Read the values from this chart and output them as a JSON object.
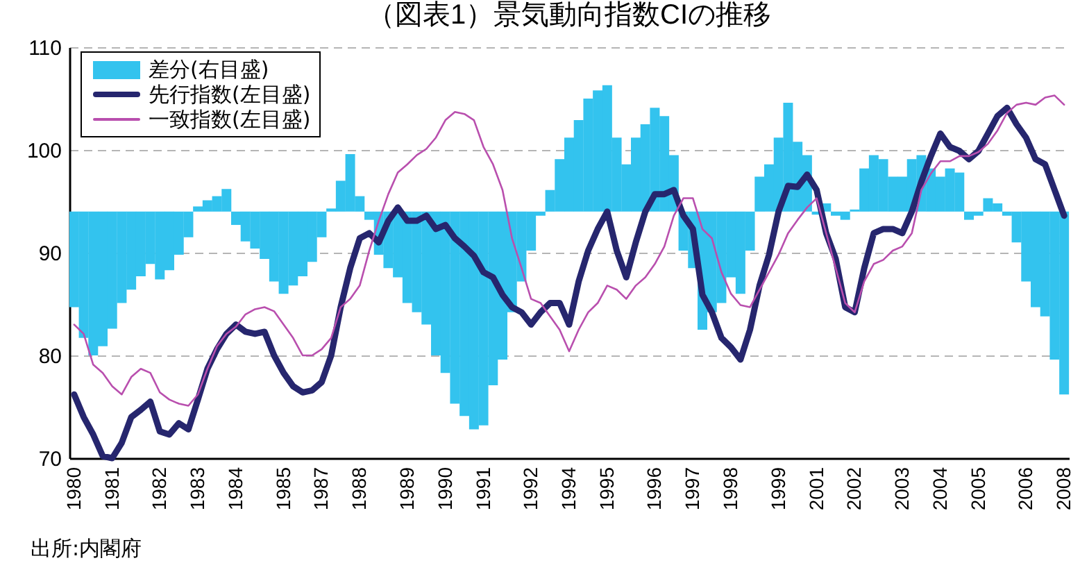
{
  "chart_data": {
    "type": "line",
    "title": "（図表1）景気動向指数CIの推移",
    "categories": [
      "1980",
      null,
      null,
      null,
      "1981",
      null,
      null,
      null,
      null,
      "1982",
      null,
      null,
      null,
      "1983",
      null,
      null,
      null,
      "1984",
      null,
      null,
      null,
      null,
      "1985",
      null,
      null,
      null,
      "1987",
      null,
      null,
      null,
      "1988",
      null,
      null,
      null,
      null,
      "1989",
      null,
      null,
      null,
      "1990",
      null,
      null,
      null,
      "1991",
      null,
      null,
      null,
      null,
      "1992",
      null,
      null,
      null,
      "1994",
      null,
      null,
      null,
      "1995",
      null,
      null,
      null,
      null,
      "1996",
      null,
      null,
      null,
      "1997",
      null,
      null,
      null,
      "1998",
      null,
      null,
      null,
      null,
      "1999",
      null,
      null,
      null,
      "2001",
      null,
      null,
      null,
      "2002",
      null,
      null,
      null,
      null,
      "2003",
      null,
      null,
      null,
      "2004",
      null,
      null,
      null,
      "2005",
      null,
      null,
      null,
      null,
      "2006",
      null,
      null,
      null,
      "2008"
    ],
    "series": [
      {
        "name": "差分(右目盛)",
        "type": "bar",
        "color": "#33c3ee",
        "base": [
          94,
          94,
          94,
          94,
          94,
          94,
          94,
          94,
          94,
          94,
          94,
          94,
          94,
          94,
          94,
          94,
          94,
          94,
          94,
          94,
          94,
          94,
          94,
          94,
          94,
          94,
          94,
          94,
          94,
          94,
          94,
          94,
          94,
          94,
          94,
          94,
          94,
          94,
          94,
          94,
          94,
          94,
          94,
          94,
          94,
          94,
          94,
          94,
          94,
          94,
          94,
          94,
          94,
          94,
          94,
          94,
          94,
          94,
          94,
          94,
          94,
          94,
          94,
          94,
          94,
          94,
          94,
          94,
          94,
          94,
          94,
          94,
          94,
          94,
          94,
          94,
          94,
          94,
          94,
          94,
          94,
          94,
          94,
          94,
          94,
          94,
          94,
          94,
          94,
          94,
          94,
          94,
          94,
          94,
          94,
          94,
          94,
          94,
          94,
          94,
          94,
          94,
          94,
          94,
          94
        ],
        "values": [
          -9.3,
          -12.3,
          -14,
          -13.1,
          -11.4,
          -8.9,
          -7.6,
          -6.3,
          -5.1,
          -6.6,
          -5.7,
          -4.2,
          -2.5,
          0.5,
          1.1,
          1.5,
          2.2,
          -1.3,
          -2.9,
          -3.6,
          -4.6,
          -6.8,
          -8,
          -7.2,
          -6.3,
          -4.9,
          -2.5,
          0.3,
          3,
          5.6,
          1.5,
          -0.8,
          -4.2,
          -5.5,
          -6.4,
          -8.9,
          -9.8,
          -11,
          -14,
          -15.7,
          -18.7,
          -19.9,
          -21.2,
          -20.8,
          -16.9,
          -14.4,
          -9.8,
          -6.8,
          -3.8,
          -0.4,
          2.1,
          5.1,
          7.2,
          8.9,
          11,
          11.8,
          12.3,
          7.2,
          4.6,
          7.2,
          8.5,
          10.1,
          9.3,
          5.5,
          -3.8,
          -5.5,
          -11.5,
          -9.8,
          -8.9,
          -6.4,
          -8,
          -3.8,
          3.4,
          4.6,
          7.2,
          10.6,
          6.8,
          5.5,
          -0.3,
          0.8,
          -0.4,
          -0.8,
          0.2,
          4.2,
          5.5,
          5.1,
          3.4,
          3.4,
          5.1,
          5.5,
          4.2,
          3.4,
          4.2,
          3.8,
          -0.8,
          -0.4,
          1.3,
          0.8,
          -0.4,
          -3,
          -6.8,
          -9.3,
          -10.2,
          -14.4,
          -17.8
        ]
      },
      {
        "name": "先行指数(左目盛)",
        "color": "#26266e",
        "values": [
          76.2,
          74,
          72.3,
          70.2,
          70,
          71.5,
          74,
          74.7,
          75.5,
          72.6,
          72.3,
          73.4,
          72.8,
          75.7,
          78.7,
          80.6,
          82.1,
          83,
          82.3,
          82.1,
          82.3,
          80,
          78.3,
          77,
          76.4,
          76.6,
          77.4,
          80,
          84.7,
          88.5,
          91.4,
          91.9,
          91,
          93.1,
          94.4,
          93.1,
          93.1,
          93.6,
          92.3,
          92.7,
          91.4,
          90.6,
          89.7,
          88.1,
          87.6,
          85.9,
          84.7,
          84.2,
          83,
          84.2,
          85.1,
          85.1,
          83,
          87.2,
          90.2,
          92.3,
          94,
          90.2,
          87.6,
          91,
          94,
          95.7,
          95.7,
          96.1,
          93.6,
          92.3,
          85.9,
          84.2,
          81.7,
          80.8,
          79.6,
          82.5,
          86.8,
          89.8,
          94,
          96.5,
          96.4,
          97.6,
          96.1,
          91.9,
          89.4,
          84.7,
          84.2,
          88.5,
          91.9,
          92.3,
          92.3,
          91.9,
          94,
          96.9,
          99.4,
          101.6,
          100.3,
          99.9,
          99.1,
          99.9,
          101.6,
          103.3,
          104.1,
          102.5,
          101.2,
          99.1,
          98.6,
          96.1,
          93.6
        ]
      },
      {
        "name": "一致指数(左目盛)",
        "color": "#b94fae",
        "values": [
          83,
          82.1,
          79.1,
          78.3,
          77,
          76.2,
          77.9,
          78.7,
          78.3,
          76.4,
          75.7,
          75.3,
          75.1,
          76.2,
          78.7,
          80.9,
          82.1,
          82.8,
          84,
          84.5,
          84.7,
          84.3,
          83,
          81.7,
          80,
          80,
          80.6,
          81.7,
          84.7,
          85.5,
          86.8,
          90.2,
          93.1,
          95.7,
          97.8,
          98.6,
          99.5,
          100.1,
          101.2,
          102.9,
          103.7,
          103.5,
          102.9,
          100.3,
          98.6,
          96.1,
          91.4,
          88.5,
          85.5,
          85.1,
          83.8,
          82.5,
          80.4,
          82.5,
          84.2,
          85.1,
          86.8,
          86.4,
          85.5,
          86.8,
          87.6,
          88.9,
          90.6,
          93.6,
          95.3,
          95.3,
          92.3,
          91.4,
          88.1,
          86,
          84.9,
          84.7,
          86.4,
          88.1,
          89.8,
          91.9,
          93.2,
          94.4,
          95.3,
          91.9,
          88.5,
          85.1,
          84.2,
          87.2,
          88.9,
          89.3,
          90.2,
          90.6,
          91.9,
          96.1,
          97.7,
          98.9,
          98.9,
          99.4,
          99.4,
          99.8,
          100.6,
          101.9,
          103.6,
          104.4,
          104.6,
          104.4,
          105.1,
          105.3,
          104.4
        ]
      }
    ],
    "ylim": [
      70,
      110
    ],
    "yticks": [
      70,
      80,
      90,
      100,
      110
    ],
    "grid": "y",
    "legend": "top left",
    "annotations": [
      "出所:内閣府"
    ]
  }
}
